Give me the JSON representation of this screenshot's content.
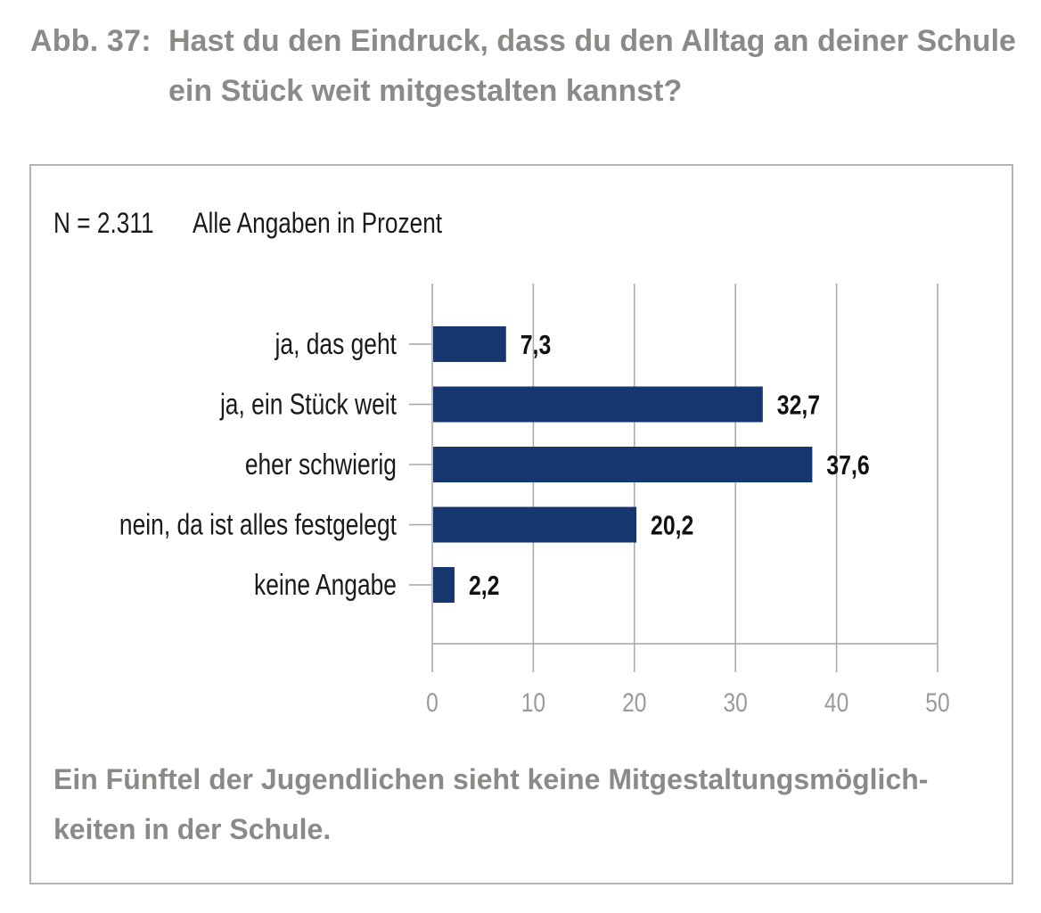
{
  "figure": {
    "label": "Abb. 37:",
    "title": "Hast du den Eindruck, dass du den Alltag an deiner Schule ein Stück weit mitgestalten kannst?"
  },
  "meta": {
    "n": "N = 2.311",
    "unit": "Alle Angaben in Prozent"
  },
  "caption": "Ein Fünftel der Jugendlichen sieht keine Mitgestaltungsmöglich-keiten in der Schule.",
  "colors": {
    "bar": "#15366f",
    "grid": "#a6a6a6",
    "title": "#8a8a87",
    "tick": "#9a9a9a"
  },
  "chart_data": {
    "type": "bar",
    "orientation": "horizontal",
    "categories": [
      "ja, das geht",
      "ja, ein Stück weit",
      "eher schwierig",
      "nein, da ist alles festgelegt",
      "keine Angabe"
    ],
    "values": [
      7.3,
      32.7,
      37.6,
      20.2,
      2.2
    ],
    "value_labels": [
      "7,3",
      "32,7",
      "37,6",
      "20,2",
      "2,2"
    ],
    "xlim": [
      0,
      50
    ],
    "xticks": [
      0,
      10,
      20,
      30,
      40,
      50
    ],
    "grid": true,
    "title": "Hast du den Eindruck, dass du den Alltag an deiner Schule ein Stück weit mitgestalten kannst?",
    "xlabel": "",
    "ylabel": ""
  }
}
